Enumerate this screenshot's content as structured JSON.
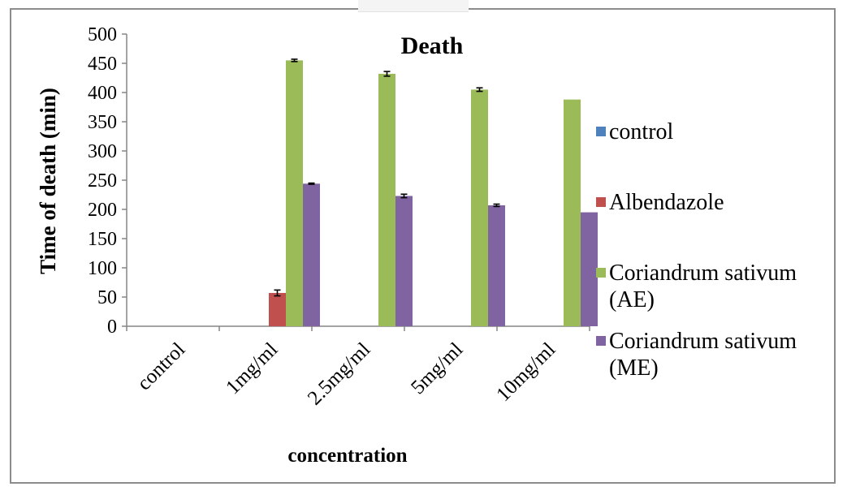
{
  "chart_data": {
    "type": "bar",
    "title": "Death",
    "xlabel": "concentration",
    "ylabel": "Time of death (min)",
    "categories": [
      "control",
      "1mg/ml",
      "2.5mg/ml",
      "5mg/ml",
      "10mg/ml"
    ],
    "ylim": [
      0,
      500
    ],
    "yticks": [
      0,
      50,
      100,
      150,
      200,
      250,
      300,
      350,
      400,
      450,
      500
    ],
    "grid": false,
    "legend_position": "right",
    "series": [
      {
        "name": "control",
        "color": "#4f81bd",
        "values": [
          0,
          0,
          0,
          0,
          0
        ],
        "errors": [
          0,
          0,
          0,
          0,
          0
        ]
      },
      {
        "name": "Albendazole",
        "color": "#c0504d",
        "values": [
          0,
          57,
          0,
          0,
          0
        ],
        "errors": [
          0,
          5,
          0,
          0,
          0
        ]
      },
      {
        "name": "Coriandrum sativum (AE)",
        "color": "#9bbb59",
        "values": [
          0,
          455,
          432,
          405,
          388
        ],
        "errors": [
          0,
          2,
          4,
          3,
          0
        ]
      },
      {
        "name": "Coriandrum sativum (ME)",
        "color": "#8064a2",
        "values": [
          0,
          244,
          223,
          207,
          195
        ],
        "errors": [
          0,
          1,
          3,
          2,
          0
        ]
      }
    ]
  }
}
